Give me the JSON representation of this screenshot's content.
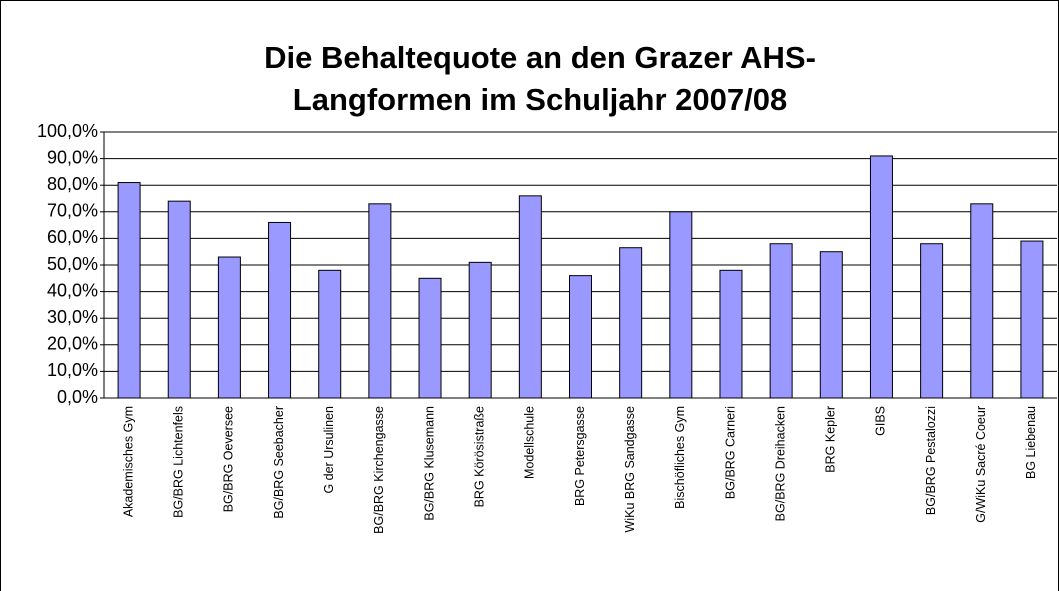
{
  "chart_data": {
    "type": "bar",
    "title": [
      "Die Behaltequote an den Grazer AHS-",
      "Langformen im Schuljahr 2007/08"
    ],
    "categories": [
      "Akademisches Gym",
      "BG/BRG Lichtenfels",
      "BG/BRG Oeversee",
      "BG/BRG Seebacher",
      "G der Ursulinen",
      "BG/BRG Kirchengasse",
      "BG/BRG Klusemann",
      "BRG Körösistraße",
      "Modellschule",
      "BRG Petersgasse",
      "WiKu BRG Sandgasse",
      "Bischöfliches Gym",
      "BG/BRG Carneri",
      "BG/BRG Dreihacken",
      "BRG Kepler",
      "GIBS",
      "BG/BRG Pestalozzi",
      "G/WiKu Sacré Coeur",
      "BG Liebenau"
    ],
    "values": [
      81,
      74,
      53,
      66,
      48,
      73,
      45,
      51,
      76,
      46,
      56.5,
      70,
      48,
      58,
      55,
      91,
      58,
      73,
      59
    ],
    "color": "#9999ff",
    "ylim": [
      0,
      100
    ],
    "yticks": [
      {
        "value": 0,
        "label": "0,0%"
      },
      {
        "value": 10,
        "label": "10,0%"
      },
      {
        "value": 20,
        "label": "20,0%"
      },
      {
        "value": 30,
        "label": "30,0%"
      },
      {
        "value": 40,
        "label": "40,0%"
      },
      {
        "value": 50,
        "label": "50,0%"
      },
      {
        "value": 60,
        "label": "60,0%"
      },
      {
        "value": 70,
        "label": "70,0%"
      },
      {
        "value": 80,
        "label": "80,0%"
      },
      {
        "value": 90,
        "label": "90,0%"
      },
      {
        "value": 100,
        "label": "100,0%"
      }
    ],
    "grid": true
  }
}
